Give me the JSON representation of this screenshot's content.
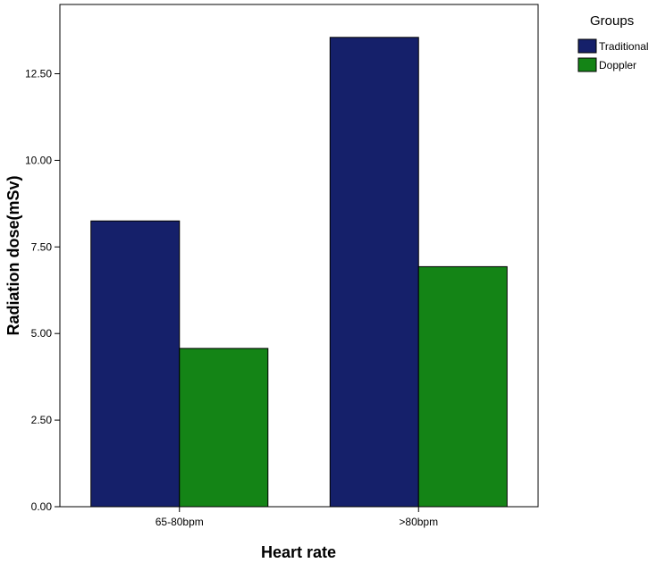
{
  "chart_data": {
    "type": "bar",
    "title": "",
    "xlabel": "Heart rate",
    "ylabel": "Radiation dose(mSv)",
    "categories": [
      "65-80bpm",
      ">80bpm"
    ],
    "series": [
      {
        "name": "Traditional",
        "color": "#15206a",
        "values": [
          8.25,
          13.55
        ]
      },
      {
        "name": "Doppler",
        "color": "#148416",
        "values": [
          4.57,
          6.93
        ]
      }
    ],
    "ylim": [
      0,
      14.5
    ],
    "yticks": [
      0,
      2.5,
      5,
      7.5,
      10,
      12.5
    ],
    "ytick_labels": [
      "0.00",
      "2.50",
      "5.00",
      "7.50",
      "10.00",
      "12.50"
    ],
    "grid": false,
    "legend": {
      "title": "Groups",
      "placement": "top-right, outside plot"
    }
  }
}
